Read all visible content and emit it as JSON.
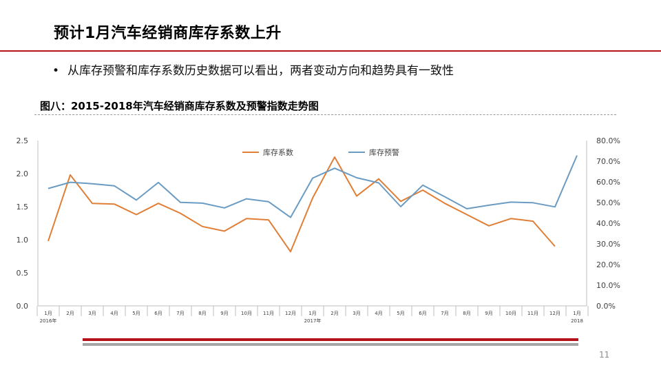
{
  "slide": {
    "title": "预计1月汽车经销商库存系数上升",
    "bullet": "从库存预警和库存系数历史数据可以看出，两者变动方向和趋势具有一致性",
    "page_number": "11"
  },
  "colors": {
    "accent_red": "#b5121b",
    "footer_gray": "#a6a6a6",
    "series_orange": "#e07e35",
    "series_blue": "#6a9bc3"
  },
  "chart_data": {
    "type": "line",
    "title": "图八：2015-2018年汽车经销商库存系数及预警指数走势图",
    "categories": [
      "1月",
      "2月",
      "3月",
      "4月",
      "5月",
      "6月",
      "7月",
      "8月",
      "9月",
      "10月",
      "11月",
      "12月",
      "1月",
      "2月",
      "3月",
      "4月",
      "5月",
      "6月",
      "7月",
      "8月",
      "9月",
      "10月",
      "11月",
      "12月",
      "1月"
    ],
    "year_labels": [
      {
        "index": 0,
        "label": "2016年"
      },
      {
        "index": 12,
        "label": "2017年"
      },
      {
        "index": 24,
        "label": "2018"
      }
    ],
    "y_left": {
      "min": 0,
      "max": 2.5,
      "ticks": [
        0,
        0.5,
        1,
        1.5,
        2,
        2.5
      ],
      "tick_labels": [
        "0.0",
        "0.5",
        "1.0",
        "1.5",
        "2.0",
        "2.5"
      ]
    },
    "y_right": {
      "min": 0,
      "max": 80,
      "ticks": [
        0,
        10,
        20,
        30,
        40,
        50,
        60,
        70,
        80
      ],
      "tick_labels": [
        "0.0%",
        "10.0%",
        "20.0%",
        "30.0%",
        "40.0%",
        "50.0%",
        "60.0%",
        "70.0%",
        "80.0%"
      ]
    },
    "legend_position": "top-center",
    "grid": false,
    "series": [
      {
        "name": "库存系数",
        "axis": "left",
        "color": "#e07e35",
        "values": [
          0.98,
          1.98,
          1.55,
          1.54,
          1.38,
          1.55,
          1.4,
          1.2,
          1.13,
          1.32,
          1.3,
          0.82,
          1.63,
          2.25,
          1.66,
          1.92,
          1.58,
          1.75,
          1.55,
          1.38,
          1.21,
          1.32,
          1.28,
          0.9,
          null
        ]
      },
      {
        "name": "库存预警",
        "axis": "right",
        "color": "#6a9bc3",
        "values": [
          56.8,
          59.8,
          59.1,
          58.1,
          51.2,
          59.7,
          50.1,
          49.7,
          47.4,
          51.8,
          50.4,
          42.8,
          61.8,
          66.6,
          62.0,
          59.5,
          48.0,
          58.4,
          52.8,
          47.0,
          48.7,
          50.2,
          49.9,
          47.9,
          72.8
        ]
      }
    ]
  }
}
